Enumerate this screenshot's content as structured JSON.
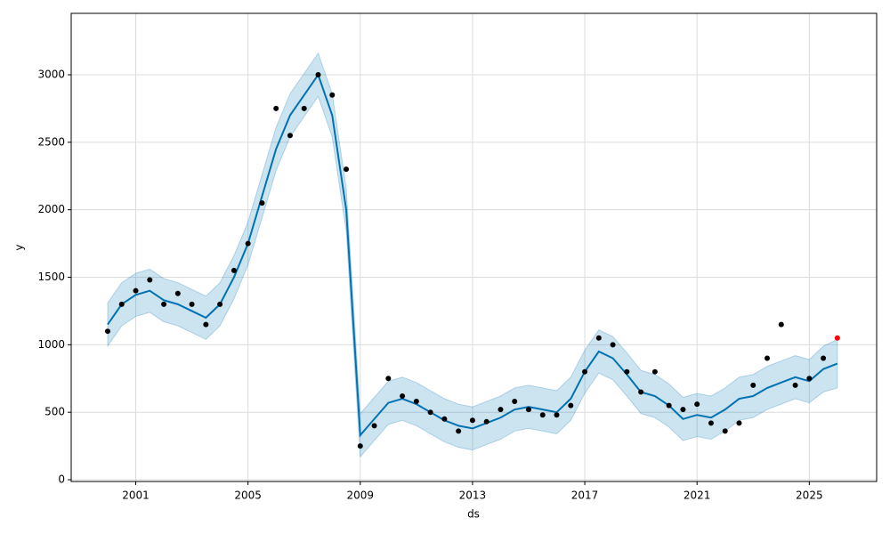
{
  "chart_data": {
    "type": "forecast",
    "xlabel": "ds",
    "ylabel": "y",
    "x": [
      2000,
      2000.5,
      2001,
      2001.5,
      2002,
      2002.5,
      2003,
      2003.5,
      2004,
      2004.5,
      2005,
      2005.5,
      2006,
      2006.5,
      2007,
      2007.5,
      2008,
      2008.5,
      2009,
      2009.5,
      2010,
      2010.5,
      2011,
      2011.5,
      2012,
      2012.5,
      2013,
      2013.5,
      2014,
      2014.5,
      2015,
      2015.5,
      2016,
      2016.5,
      2017,
      2017.5,
      2018,
      2018.5,
      2019,
      2019.5,
      2020,
      2020.5,
      2021,
      2021.5,
      2022,
      2022.5,
      2023,
      2023.5,
      2024,
      2024.5,
      2025,
      2025.5,
      2026
    ],
    "series": [
      {
        "style": "points",
        "color": "#000000",
        "values": [
          1100,
          1300,
          1400,
          1480,
          1300,
          1380,
          1300,
          1150,
          1300,
          1550,
          1750,
          2050,
          2750,
          2550,
          2750,
          3000,
          2850,
          2300,
          250,
          400,
          750,
          620,
          580,
          500,
          450,
          360,
          440,
          430,
          520,
          580,
          520,
          480,
          480,
          550,
          800,
          1050,
          1000,
          800,
          650,
          800,
          550,
          520,
          560,
          420,
          360,
          420,
          700,
          900,
          1150,
          700,
          750,
          900,
          null
        ]
      },
      {
        "style": "line",
        "color": "#0072b2",
        "values": [
          1150,
          1300,
          1370,
          1400,
          1330,
          1300,
          1250,
          1200,
          1300,
          1500,
          1750,
          2100,
          2450,
          2700,
          2850,
          3000,
          2700,
          2000,
          330,
          450,
          570,
          600,
          560,
          500,
          440,
          400,
          380,
          420,
          460,
          520,
          540,
          520,
          500,
          600,
          800,
          950,
          900,
          780,
          650,
          620,
          550,
          450,
          480,
          460,
          520,
          600,
          620,
          680,
          720,
          760,
          730,
          820,
          860
        ]
      },
      {
        "style": "band-lower",
        "color": "#0072b2",
        "values": [
          990,
          1140,
          1210,
          1240,
          1170,
          1140,
          1090,
          1040,
          1140,
          1340,
          1590,
          1940,
          2290,
          2540,
          2690,
          2840,
          2540,
          1840,
          170,
          290,
          410,
          440,
          400,
          340,
          280,
          240,
          220,
          260,
          300,
          360,
          380,
          360,
          340,
          440,
          640,
          790,
          740,
          620,
          490,
          460,
          390,
          290,
          320,
          300,
          360,
          440,
          460,
          520,
          560,
          600,
          570,
          650,
          680
        ]
      },
      {
        "style": "band-upper",
        "color": "#0072b2",
        "values": [
          1310,
          1460,
          1530,
          1560,
          1490,
          1460,
          1410,
          1360,
          1460,
          1660,
          1910,
          2260,
          2610,
          2860,
          3010,
          3160,
          2860,
          2160,
          490,
          610,
          730,
          760,
          720,
          660,
          600,
          560,
          540,
          580,
          620,
          680,
          700,
          680,
          660,
          760,
          960,
          1110,
          1060,
          940,
          810,
          780,
          710,
          610,
          640,
          620,
          680,
          760,
          780,
          840,
          880,
          920,
          890,
          990,
          1040
        ]
      },
      {
        "style": "points",
        "color": "#ff0000",
        "x": [
          2026
        ],
        "values": [
          1050
        ]
      }
    ],
    "xlim": [
      1998.7,
      2027.4
    ],
    "xticks": [
      2001,
      2005,
      2009,
      2013,
      2017,
      2021,
      2025
    ],
    "ylim": [
      -13,
      3455
    ],
    "yticks": [
      0,
      500,
      1000,
      1500,
      2000,
      2500,
      3000
    ],
    "grid": true
  }
}
